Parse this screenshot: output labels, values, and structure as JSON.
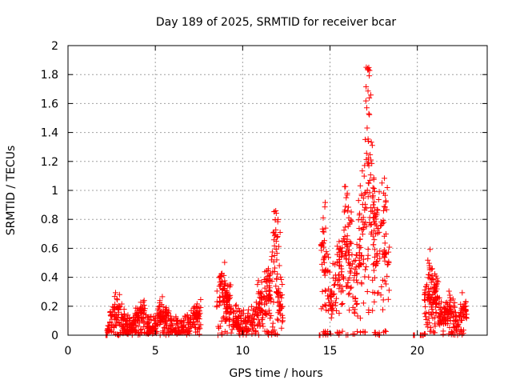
{
  "chart_data": {
    "type": "scatter",
    "title": "Day 189 of 2025, SRMTID for receiver bcar",
    "xlabel": "GPS time / hours",
    "ylabel": "SRMTID / TECUs",
    "xlim": [
      0,
      24
    ],
    "ylim": [
      0,
      2
    ],
    "xticks": [
      0,
      5,
      10,
      15,
      20
    ],
    "xtick_labels": [
      "0",
      "5",
      "10",
      "15",
      "20"
    ],
    "yticks": [
      0,
      0.2,
      0.4,
      0.6,
      0.8,
      1,
      1.2,
      1.4,
      1.6,
      1.8,
      2
    ],
    "ytick_labels": [
      "0",
      "0.2",
      "0.4",
      "0.6",
      "0.8",
      "1",
      "1.2",
      "1.4",
      "1.6",
      "1.8",
      "2"
    ],
    "grid": true,
    "marker": "plus",
    "marker_color": "#ff0000",
    "series": [
      {
        "name": "SRMTID",
        "segments": [
          {
            "t_start": 2.2,
            "t_end": 7.6,
            "base": 0.05,
            "spread": 0.12,
            "bursts": [
              {
                "t": 2.8,
                "v": 0.22
              },
              {
                "t": 4.2,
                "v": 0.2
              },
              {
                "t": 5.4,
                "v": 0.18
              },
              {
                "t": 7.4,
                "v": 0.2
              }
            ]
          },
          {
            "t_start": 8.5,
            "t_end": 12.3,
            "base": 0.08,
            "spread": 0.15,
            "bursts": [
              {
                "t": 8.8,
                "v": 0.43
              },
              {
                "t": 9.2,
                "v": 0.28
              },
              {
                "t": 11.0,
                "v": 0.3
              },
              {
                "t": 11.5,
                "v": 0.45
              },
              {
                "t": 11.9,
                "v": 0.87
              },
              {
                "t": 12.1,
                "v": 0.3
              }
            ]
          },
          {
            "t_start": 14.5,
            "t_end": 18.4,
            "base": 0.35,
            "spread": 0.3,
            "bursts": [
              {
                "t": 14.6,
                "v": 0.66
              },
              {
                "t": 15.6,
                "v": 0.6
              },
              {
                "t": 16.0,
                "v": 0.89
              },
              {
                "t": 16.8,
                "v": 0.85
              },
              {
                "t": 17.2,
                "v": 1.86
              },
              {
                "t": 17.4,
                "v": 1.2
              },
              {
                "t": 17.6,
                "v": 0.87
              },
              {
                "t": 18.1,
                "v": 0.93
              }
            ]
          },
          {
            "t_start": 20.4,
            "t_end": 22.8,
            "base": 0.1,
            "spread": 0.12,
            "bursts": [
              {
                "t": 20.7,
                "v": 0.48
              },
              {
                "t": 21.0,
                "v": 0.35
              },
              {
                "t": 21.8,
                "v": 0.2
              },
              {
                "t": 22.7,
                "v": 0.21
              }
            ]
          }
        ],
        "zero_markers": [
          2.2,
          2.9,
          14.4,
          19.8,
          20.2,
          20.3
        ]
      }
    ]
  }
}
